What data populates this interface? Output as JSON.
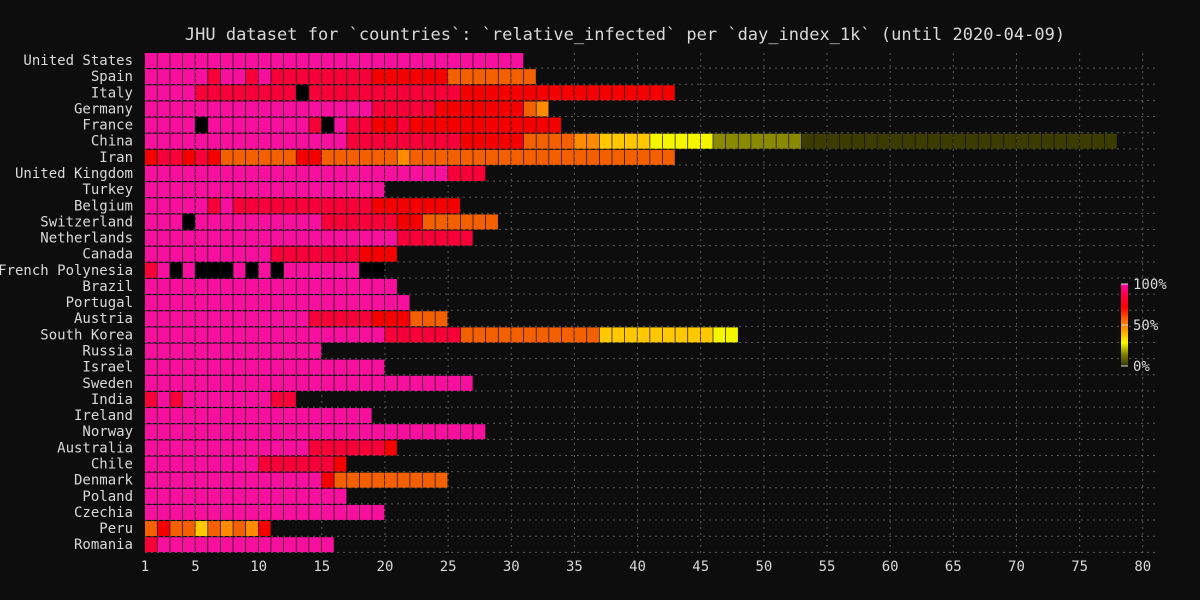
{
  "chart_data": {
    "type": "heatmap",
    "title": "JHU dataset for `countries`: `relative_infected` per `day_index_1k` (until 2020-04-09)",
    "xlim": [
      0,
      80
    ],
    "xticks": [
      1,
      5,
      10,
      15,
      20,
      25,
      30,
      35,
      40,
      45,
      50,
      55,
      60,
      65,
      70,
      75,
      80
    ],
    "grid": true,
    "colorbar": {
      "tick_labels": [
        "100%",
        "50%",
        "0%"
      ],
      "stops": [
        "#ff00aa",
        "#ff0040",
        "#ff0000",
        "#ff6000",
        "#ffa000",
        "#ffff00",
        "#808000",
        "#333300"
      ]
    },
    "color_levels": {
      "m": "#f70f9e",
      "r": "#f7003a",
      "R": "#f50000",
      "o": "#f26000",
      "a": "#ff8c00",
      "y": "#ffc800",
      "Y": "#f5f500",
      "l": "#8a8a00",
      "d": "#3c3c00",
      "k": "#000000"
    },
    "rows": [
      {
        "name": "United States",
        "cells": "mmmmmmmmmmmmmmmmmmmmmmmmmmmmmm"
      },
      {
        "name": "Spain",
        "cells": "mmmmmrmmrmrrrrrrrrRRRRRRooooooo"
      },
      {
        "name": "Italy",
        "cells": "mmmmrrrrrrrrkrrrrrrrrrrrrRRRRRRRRRRRRRRRRR"
      },
      {
        "name": "Germany",
        "cells": "mmmmmmmmmmmmmmmmmmrrrrrRRRRRRRoa"
      },
      {
        "name": "France",
        "cells": "mmmmkmmmmmmmmrkmrrRRrRRRRRRRRRRRR"
      },
      {
        "name": "China",
        "cells": "mmmmmmmmmmmmmmmmrrrrrrrrrRRRRRooooaayyyyYYYYYlllllllddddddddddddddddddddddddd"
      },
      {
        "name": "Iran",
        "cells": "RrrRrRooooooRRooooooaooooooooooooooooooooo"
      },
      {
        "name": "United Kingdom",
        "cells": "mmmmmmmmmmmmmmmmmmmmmmmmrrr"
      },
      {
        "name": "Turkey",
        "cells": "mmmmmmmmmmmmmmmmmmm"
      },
      {
        "name": "Belgium",
        "cells": "mmmmmrmrrrrrrrrrrrRRRRRRR"
      },
      {
        "name": "Switzerland",
        "cells": "mmmkmmmmmmmmmmrrrrrrRRoooooo"
      },
      {
        "name": "Netherlands",
        "cells": "mmmmmmmmmmmmmmmmmmmmrrrrrr"
      },
      {
        "name": "Canada",
        "cells": "mmmmmmmmmmrrrrrrrRRR"
      },
      {
        "name": "French Polynesia",
        "cells": "rmkmkkkmkmkmmmmmmkk"
      },
      {
        "name": "Brazil",
        "cells": "mmmmmmmmmmmmmmmmmmmm"
      },
      {
        "name": "Portugal",
        "cells": "mmmmmmmmmmmmmmmmmmmmm"
      },
      {
        "name": "Austria",
        "cells": "mmmmmmmmmmmmmrrrrrRRRooo"
      },
      {
        "name": "South Korea",
        "cells": "mmmmmmmmmmmmmmmmmmmrrrrrroooooooooooyyyyyyyyyYY"
      },
      {
        "name": "Russia",
        "cells": "mmmmmmmmmmmmmm"
      },
      {
        "name": "Israel",
        "cells": "mmmmmmmmmmmmmmmmmmm"
      },
      {
        "name": "Sweden",
        "cells": "mmmmmmmmmmmmmmmmmmmmmmmmmm"
      },
      {
        "name": "India",
        "cells": "rmrmmmmmmmrr"
      },
      {
        "name": "Ireland",
        "cells": "mmmmmmmmmmmmmmmmmm"
      },
      {
        "name": "Norway",
        "cells": "mmmmmmmmmmmmmmmmmmmmmmmmmmm"
      },
      {
        "name": "Australia",
        "cells": "mmmmmmmmmmmmmrrrrrrR"
      },
      {
        "name": "Chile",
        "cells": "mmmmmmmmmrrrrrrR"
      },
      {
        "name": "Denmark",
        "cells": "mmmmmmmmmmmmmmRooooooooo"
      },
      {
        "name": "Poland",
        "cells": "mmmmmmmmmmmmmmmm"
      },
      {
        "name": "Czechia",
        "cells": "mmmmmmmmmmmmmmmmmmm"
      },
      {
        "name": "Peru",
        "cells": "oRooyoaoaR"
      },
      {
        "name": "Romania",
        "cells": "rmmmmmmmmmmmmmm"
      }
    ]
  }
}
